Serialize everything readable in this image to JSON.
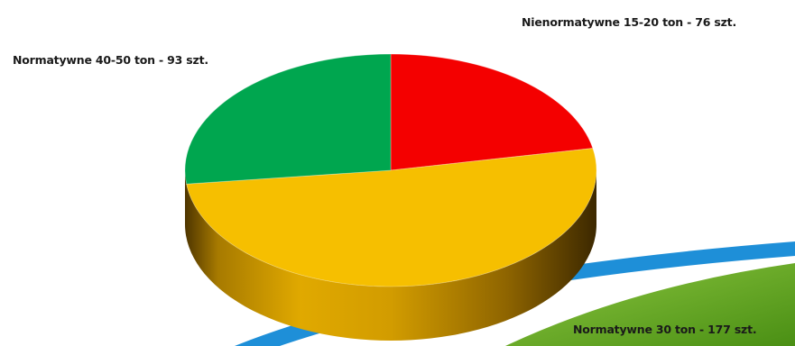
{
  "chart_data": {
    "type": "pie",
    "style": "3d",
    "title": "",
    "legend": "none",
    "slices": [
      {
        "label": "Nienormatywne 15-20 ton - 76 szt.",
        "category": "Nienormatywne 15-20 ton",
        "value": 76,
        "color": "#f40000"
      },
      {
        "label": "Normatywne 40-50 ton - 93 szt.",
        "category": "Normatywne 40-50 ton",
        "value": 93,
        "color": "#00a64f"
      },
      {
        "label": "Normatywne 30 ton - 177 szt.",
        "category": "Normatywne 30 ton",
        "value": 177,
        "color": "#f6bf00"
      }
    ],
    "units": "szt."
  },
  "background": {
    "swoosh_colors": [
      "#1e8fd8",
      "#5aa21e"
    ]
  }
}
